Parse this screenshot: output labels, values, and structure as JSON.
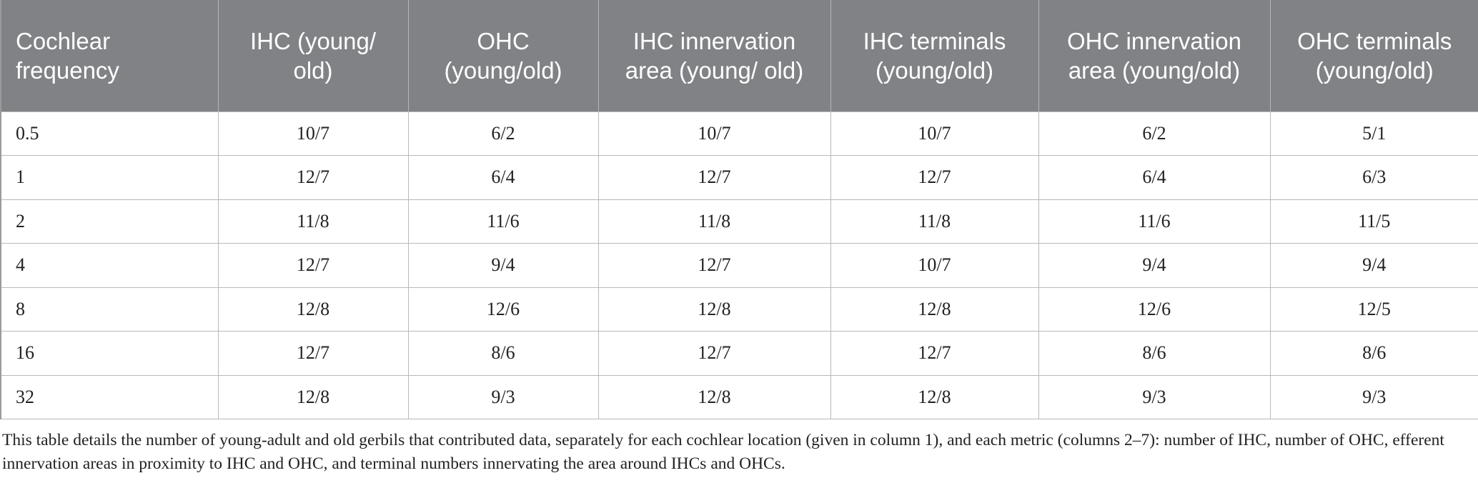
{
  "table": {
    "headers": [
      "Cochlear frequency",
      "IHC (young/ old)",
      "OHC (young/old)",
      "IHC innervation area (young/ old)",
      "IHC terminals (young/old)",
      "OHC innervation area (young/old)",
      "OHC terminals (young/old)"
    ],
    "rows": [
      [
        "0.5",
        "10/7",
        "6/2",
        "10/7",
        "10/7",
        "6/2",
        "5/1"
      ],
      [
        "1",
        "12/7",
        "6/4",
        "12/7",
        "12/7",
        "6/4",
        "6/3"
      ],
      [
        "2",
        "11/8",
        "11/6",
        "11/8",
        "11/8",
        "11/6",
        "11/5"
      ],
      [
        "4",
        "12/7",
        "9/4",
        "12/7",
        "10/7",
        "9/4",
        "9/4"
      ],
      [
        "8",
        "12/8",
        "12/6",
        "12/8",
        "12/8",
        "12/6",
        "12/5"
      ],
      [
        "16",
        "12/7",
        "8/6",
        "12/7",
        "12/7",
        "8/6",
        "8/6"
      ],
      [
        "32",
        "12/8",
        "9/3",
        "12/8",
        "12/8",
        "9/3",
        "9/3"
      ]
    ]
  },
  "footnote": "This table details the number of young-adult and old gerbils that contributed data, separately for each cochlear location (given in column 1), and each metric (columns 2–7): number of IHC, number of OHC, efferent innervation areas in proximity to IHC and OHC, and terminal numbers innervating the area around IHCs and OHCs.",
  "colors": {
    "header_bg": "#808285",
    "header_text": "#ffffff",
    "grid": "#b9b9b9"
  }
}
